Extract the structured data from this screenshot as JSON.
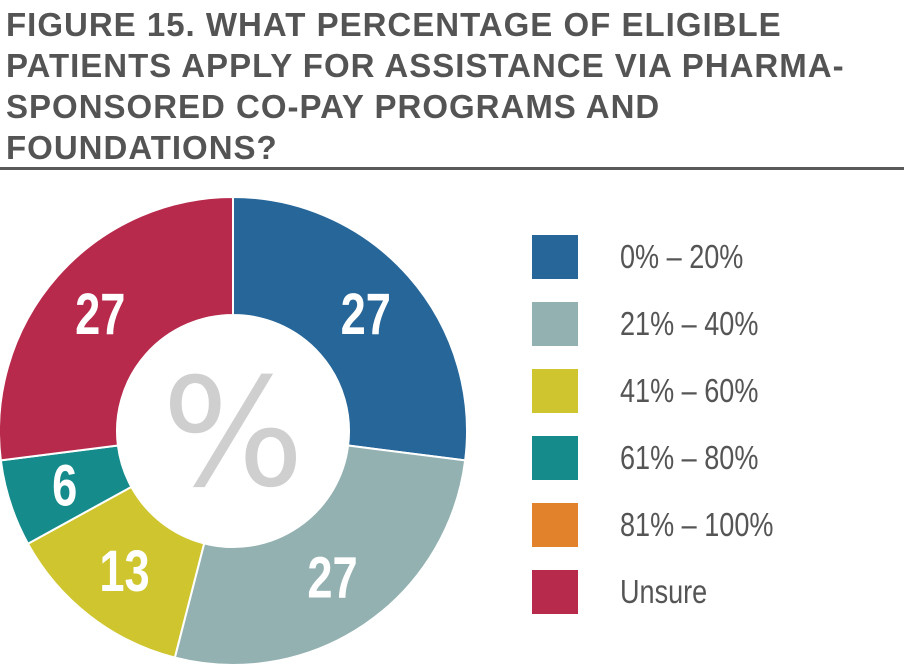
{
  "title": "FIGURE 15. WHAT PERCENTAGE OF ELIGIBLE PATIENTS APPLY FOR ASSISTANCE VIA PHARMA-SPONSORED CO-PAY PROGRAMS AND FOUNDATIONS?",
  "center_symbol": "%",
  "chart_data": {
    "type": "pie",
    "donut": true,
    "title": "FIGURE 15. WHAT PERCENTAGE OF ELIGIBLE PATIENTS APPLY FOR ASSISTANCE VIA PHARMA-SPONSORED CO-PAY PROGRAMS AND FOUNDATIONS?",
    "categories": [
      "0% – 20%",
      "21% – 40%",
      "41% – 60%",
      "61% – 80%",
      "81% – 100%",
      "Unsure"
    ],
    "values": [
      27,
      27,
      13,
      6,
      0,
      27
    ],
    "colors": [
      "#266699",
      "#94b1b2",
      "#cfc52e",
      "#158b8b",
      "#e2822a",
      "#b82a4c"
    ],
    "legend_position": "right"
  }
}
